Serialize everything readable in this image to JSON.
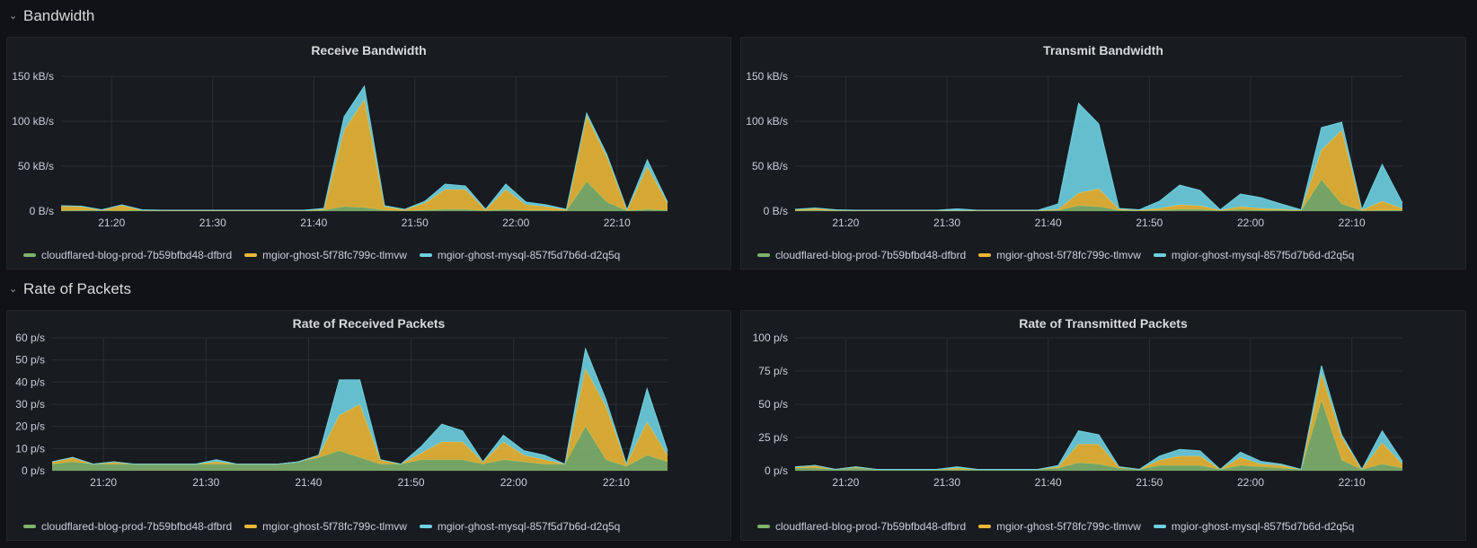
{
  "rows": [
    {
      "title": "Bandwidth",
      "icon": "chevron-down-icon"
    },
    {
      "title": "Rate of Packets",
      "icon": "chevron-down-icon"
    }
  ],
  "colors": {
    "cloudflared": "#7eb26d",
    "ghost": "#eab839",
    "mysql": "#6ed0e0"
  },
  "legend": [
    {
      "label": "cloudflared-blog-prod-7b59bfbd48-dfbrd",
      "color": "#7eb26d"
    },
    {
      "label": "mgior-ghost-5f78fc799c-tlmvw",
      "color": "#eab839"
    },
    {
      "label": "mgior-ghost-mysql-857f5d7b6d-d2q5q",
      "color": "#6ed0e0"
    }
  ],
  "panels": [
    {
      "title": "Receive Bandwidth"
    },
    {
      "title": "Transmit Bandwidth"
    },
    {
      "title": "Rate of Received Packets"
    },
    {
      "title": "Rate of Transmitted Packets"
    }
  ],
  "chart_data": [
    {
      "type": "area",
      "stacked": true,
      "title": "Receive Bandwidth",
      "x": [
        "21:15",
        "21:17",
        "21:19",
        "21:21",
        "21:23",
        "21:25",
        "21:27",
        "21:29",
        "21:31",
        "21:33",
        "21:35",
        "21:37",
        "21:39",
        "21:41",
        "21:43",
        "21:45",
        "21:47",
        "21:49",
        "21:51",
        "21:53",
        "21:55",
        "21:57",
        "21:59",
        "22:01",
        "22:03",
        "22:05",
        "22:07",
        "22:09",
        "22:11",
        "22:13",
        "22:15"
      ],
      "xticks": [
        "21:20",
        "21:30",
        "21:40",
        "21:50",
        "22:00",
        "22:10"
      ],
      "yticks": [
        "0 B/s",
        "50 kB/s",
        "100 kB/s",
        "150 kB/s"
      ],
      "ylim": [
        0,
        150
      ],
      "yunit": "kB/s",
      "series": [
        {
          "name": "cloudflared-blog-prod-7b59bfbd48-dfbrd",
          "values": [
            0.5,
            1,
            1,
            0.5,
            1,
            0.5,
            0.5,
            0.5,
            0.5,
            0.5,
            0.5,
            0.5,
            0.5,
            1,
            5,
            4,
            1,
            0.5,
            1,
            2,
            2,
            0.5,
            2,
            1,
            1,
            0.5,
            33,
            10,
            0.5,
            2,
            1
          ]
        },
        {
          "name": "mgior-ghost-5f78fc799c-tlmvw",
          "values": [
            5,
            4,
            0,
            6,
            0,
            0,
            0,
            0,
            0,
            0,
            0,
            0,
            0,
            1,
            85,
            120,
            4,
            1,
            8,
            22,
            22,
            1,
            22,
            6,
            4,
            1,
            73,
            50,
            0.5,
            47,
            8
          ]
        },
        {
          "name": "mgior-ghost-mysql-857f5d7b6d-d2q5q",
          "values": [
            0.5,
            0.5,
            0.5,
            0.5,
            0.5,
            0.5,
            0.5,
            0.5,
            0.5,
            0.5,
            0.5,
            0.5,
            0.5,
            1,
            15,
            15,
            1,
            0.5,
            2,
            6,
            4,
            0.5,
            6,
            3,
            2,
            0.5,
            3,
            3,
            0.5,
            8,
            1
          ]
        }
      ]
    },
    {
      "type": "area",
      "stacked": true,
      "title": "Transmit Bandwidth",
      "x": [
        "21:15",
        "21:17",
        "21:19",
        "21:21",
        "21:23",
        "21:25",
        "21:27",
        "21:29",
        "21:31",
        "21:33",
        "21:35",
        "21:37",
        "21:39",
        "21:41",
        "21:43",
        "21:45",
        "21:47",
        "21:49",
        "21:51",
        "21:53",
        "21:55",
        "21:57",
        "21:59",
        "22:01",
        "22:03",
        "22:05",
        "22:07",
        "22:09",
        "22:11",
        "22:13",
        "22:15"
      ],
      "xticks": [
        "21:20",
        "21:30",
        "21:40",
        "21:50",
        "22:00",
        "22:10"
      ],
      "yticks": [
        "0 B/s",
        "50 kB/s",
        "100 kB/s",
        "150 kB/s"
      ],
      "ylim": [
        0,
        150
      ],
      "yunit": "kB/s",
      "series": [
        {
          "name": "cloudflared-blog-prod-7b59bfbd48-dfbrd",
          "values": [
            0.5,
            1,
            0.5,
            0.5,
            0.5,
            0.5,
            0.5,
            0.5,
            0.5,
            0.5,
            0.5,
            0.5,
            0.5,
            1,
            6,
            5,
            1,
            0.5,
            1,
            2,
            2,
            0.5,
            2,
            1,
            1,
            0.5,
            35,
            8,
            0.5,
            1,
            1
          ]
        },
        {
          "name": "mgior-ghost-5f78fc799c-tlmvw",
          "values": [
            1,
            2,
            0.5,
            0,
            0,
            0,
            0,
            0,
            0,
            0,
            0,
            0,
            0,
            1,
            14,
            20,
            1,
            0.5,
            2,
            5,
            4,
            0.5,
            3,
            2,
            1,
            0.5,
            33,
            82,
            0.5,
            10,
            2
          ]
        },
        {
          "name": "mgior-ghost-mysql-857f5d7b6d-d2q5q",
          "values": [
            0.5,
            0.5,
            0.5,
            0.5,
            0.5,
            0.5,
            0.5,
            0.5,
            2,
            0.5,
            0.5,
            0.5,
            0.5,
            6,
            100,
            72,
            1,
            0.5,
            8,
            22,
            17,
            0.5,
            14,
            12,
            6,
            0.5,
            25,
            9,
            0.5,
            41,
            6
          ]
        }
      ]
    },
    {
      "type": "area",
      "stacked": true,
      "title": "Rate of Received Packets",
      "x": [
        "21:15",
        "21:17",
        "21:19",
        "21:21",
        "21:23",
        "21:25",
        "21:27",
        "21:29",
        "21:31",
        "21:33",
        "21:35",
        "21:37",
        "21:39",
        "21:41",
        "21:43",
        "21:45",
        "21:47",
        "21:49",
        "21:51",
        "21:53",
        "21:55",
        "21:57",
        "21:59",
        "22:01",
        "22:03",
        "22:05",
        "22:07",
        "22:09",
        "22:11",
        "22:13",
        "22:15"
      ],
      "xticks": [
        "21:20",
        "21:30",
        "21:40",
        "21:50",
        "22:00",
        "22:10"
      ],
      "yticks": [
        "0 p/s",
        "10 p/s",
        "20 p/s",
        "30 p/s",
        "40 p/s",
        "50 p/s",
        "60 p/s"
      ],
      "ylim": [
        0,
        60
      ],
      "yunit": "p/s",
      "series": [
        {
          "name": "cloudflared-blog-prod-7b59bfbd48-dfbrd",
          "values": [
            3,
            4,
            3,
            3,
            3,
            3,
            3,
            3,
            3,
            3,
            3,
            3,
            4,
            6,
            9,
            6,
            3,
            3,
            5,
            5,
            5,
            3,
            5,
            4,
            3,
            3,
            20,
            5,
            2,
            7,
            4
          ]
        },
        {
          "name": "mgior-ghost-5f78fc799c-tlmvw",
          "values": [
            1,
            2,
            0,
            1,
            0,
            0,
            0,
            0,
            1,
            0,
            0,
            0,
            0,
            1,
            16,
            24,
            2,
            0,
            3,
            8,
            8,
            1,
            8,
            3,
            2,
            0,
            26,
            24,
            1,
            15,
            3
          ]
        },
        {
          "name": "mgior-ghost-mysql-857f5d7b6d-d2q5q",
          "values": [
            0,
            0,
            0,
            0,
            0,
            0,
            0,
            0,
            1,
            0,
            0,
            0,
            0,
            0,
            16,
            11,
            0,
            0,
            3,
            8,
            5,
            0,
            3,
            2,
            2,
            0,
            9,
            3,
            0,
            15,
            2
          ]
        }
      ]
    },
    {
      "type": "area",
      "stacked": true,
      "title": "Rate of Transmitted Packets",
      "x": [
        "21:15",
        "21:17",
        "21:19",
        "21:21",
        "21:23",
        "21:25",
        "21:27",
        "21:29",
        "21:31",
        "21:33",
        "21:35",
        "21:37",
        "21:39",
        "21:41",
        "21:43",
        "21:45",
        "21:47",
        "21:49",
        "21:51",
        "21:53",
        "21:55",
        "21:57",
        "21:59",
        "22:01",
        "22:03",
        "22:05",
        "22:07",
        "22:09",
        "22:11",
        "22:13",
        "22:15"
      ],
      "xticks": [
        "21:20",
        "21:30",
        "21:40",
        "21:50",
        "22:00",
        "22:10"
      ],
      "yticks": [
        "0 p/s",
        "25 p/s",
        "50 p/s",
        "75 p/s",
        "100 p/s"
      ],
      "ylim": [
        0,
        100
      ],
      "yunit": "p/s",
      "series": [
        {
          "name": "cloudflared-blog-prod-7b59bfbd48-dfbrd",
          "values": [
            2,
            2,
            1,
            2,
            1,
            1,
            1,
            1,
            1,
            1,
            1,
            1,
            1,
            2,
            6,
            5,
            2,
            1,
            4,
            4,
            4,
            1,
            4,
            3,
            2,
            1,
            53,
            8,
            1,
            5,
            2
          ]
        },
        {
          "name": "mgior-ghost-5f78fc799c-tlmvw",
          "values": [
            1,
            2,
            0,
            1,
            0,
            0,
            0,
            0,
            1,
            0,
            0,
            0,
            0,
            1,
            14,
            15,
            1,
            0,
            4,
            7,
            7,
            0,
            6,
            2,
            2,
            0,
            20,
            17,
            0,
            16,
            3
          ]
        },
        {
          "name": "mgior-ghost-mysql-857f5d7b6d-d2q5q",
          "values": [
            0,
            0,
            0,
            0,
            0,
            0,
            0,
            0,
            1,
            0,
            0,
            0,
            0,
            1,
            10,
            7,
            0,
            0,
            3,
            5,
            4,
            0,
            4,
            2,
            1,
            0,
            6,
            2,
            0,
            9,
            2
          ]
        }
      ]
    }
  ]
}
